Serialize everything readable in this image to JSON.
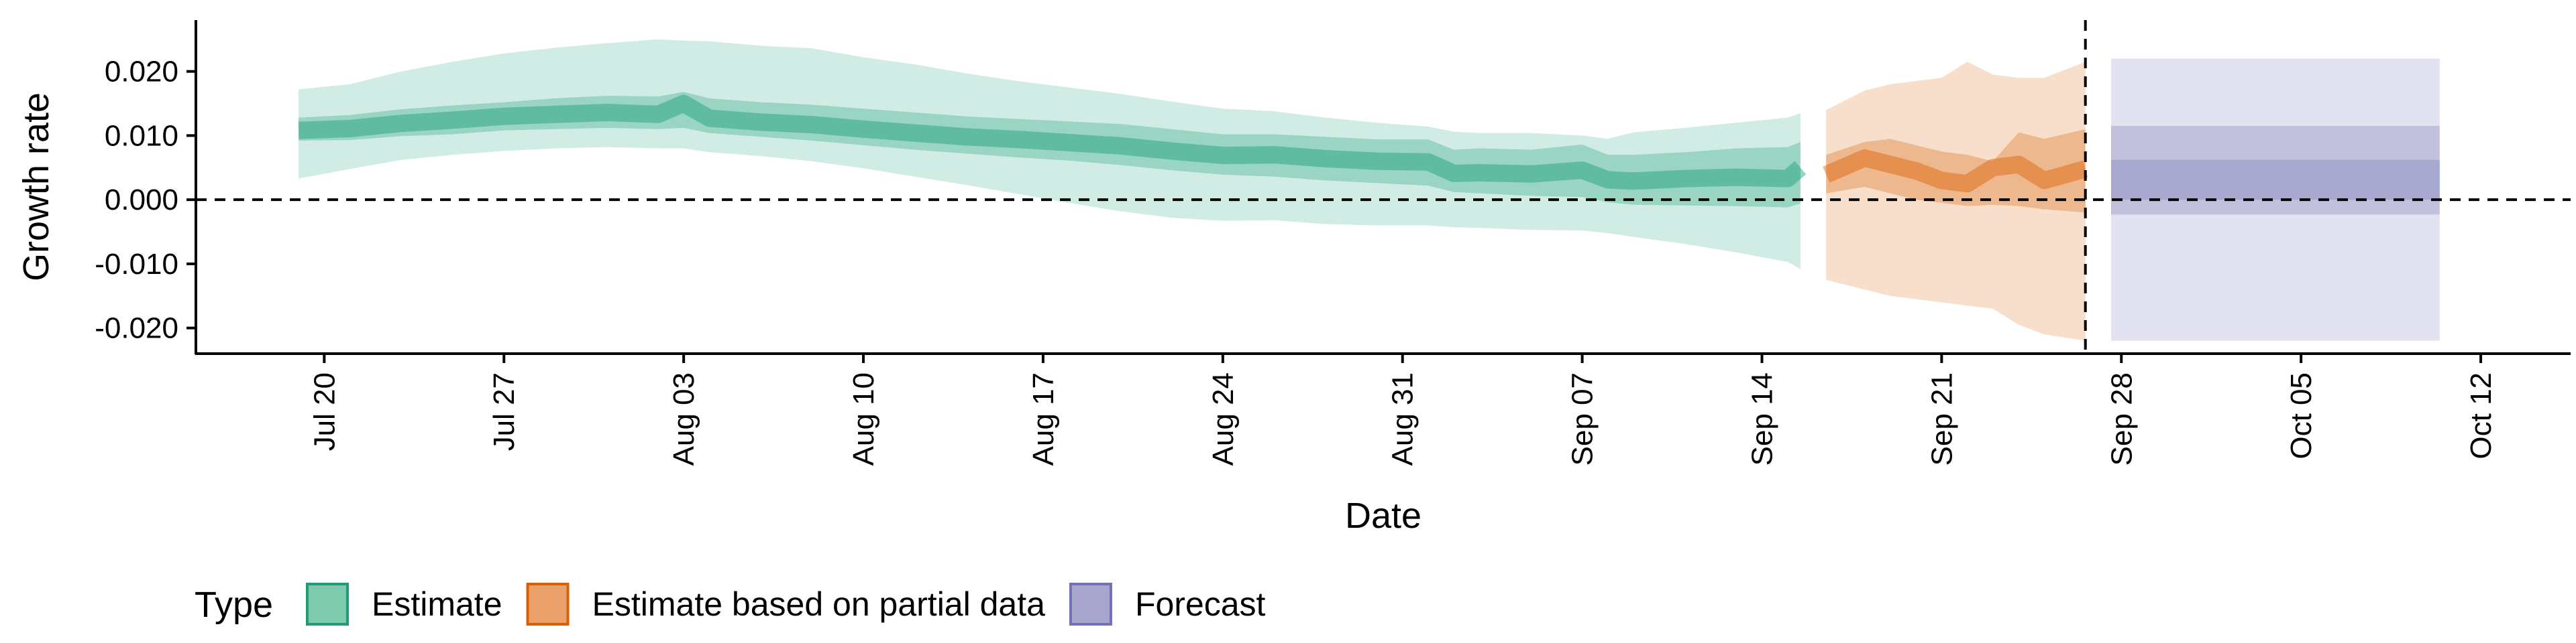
{
  "chart_data": {
    "type": "area",
    "xlabel": "Date",
    "ylabel": "Growth rate",
    "ylim": [
      -0.024,
      0.028
    ],
    "y_ticks": [
      "0.020",
      "0.010",
      "0.000",
      "-0.010",
      "-0.020"
    ],
    "y_tick_values": [
      0.02,
      0.01,
      0.0,
      -0.01,
      -0.02
    ],
    "x_ticks": [
      "Jul 20",
      "Jul 27",
      "Aug 03",
      "Aug 10",
      "Aug 17",
      "Aug 24",
      "Aug 31",
      "Sep 07",
      "Sep 14",
      "Sep 21",
      "Sep 28",
      "Oct 05",
      "Oct 12"
    ],
    "x_tick_days": [
      0,
      7,
      14,
      21,
      28,
      35,
      42,
      49,
      56,
      63,
      70,
      77,
      84
    ],
    "xlim_days": [
      -5,
      87.5
    ],
    "reference_lines": {
      "y_zero": 0.0,
      "vertical_day": 68.6
    },
    "grid": false,
    "legend": {
      "title": "Type",
      "placement": "bottom",
      "entries": [
        {
          "label": "Estimate",
          "fill": "#7fc9ae",
          "stroke": "#1b9e77"
        },
        {
          "label": "Estimate based on partial data",
          "fill": "#e9a06a",
          "stroke": "#d95f02"
        },
        {
          "label": "Forecast",
          "fill": "#aaa7cf",
          "stroke": "#7570b3"
        }
      ]
    },
    "series": [
      {
        "type": "Estimate",
        "color": "#1b9e77",
        "x_days": [
          -1,
          1,
          3,
          5,
          7,
          9,
          11,
          13,
          14,
          15,
          17,
          19,
          21,
          23,
          25,
          27,
          29,
          31,
          33,
          35,
          37,
          39,
          41,
          43,
          44,
          45,
          47,
          49,
          50,
          51,
          53,
          55,
          57,
          57.5
        ],
        "median": [
          0.0108,
          0.0111,
          0.0119,
          0.0124,
          0.013,
          0.0133,
          0.0136,
          0.0133,
          0.015,
          0.0127,
          0.0121,
          0.0117,
          0.011,
          0.0104,
          0.0098,
          0.0094,
          0.0089,
          0.0084,
          0.0076,
          0.0069,
          0.007,
          0.0064,
          0.006,
          0.0059,
          0.0041,
          0.0042,
          0.004,
          0.0046,
          0.0031,
          0.0029,
          0.0033,
          0.0035,
          0.0033,
          0.005
        ],
        "inner_lo": [
          0.0092,
          0.0093,
          0.0099,
          0.0102,
          0.0108,
          0.011,
          0.0112,
          0.011,
          0.0112,
          0.0104,
          0.0098,
          0.0092,
          0.0085,
          0.0078,
          0.0072,
          0.0066,
          0.0061,
          0.0054,
          0.0046,
          0.0039,
          0.0036,
          0.003,
          0.0026,
          0.0022,
          0.0012,
          0.001,
          0.0006,
          0.0004,
          -0.0004,
          -0.0008,
          -0.0009,
          -0.001,
          -0.0012,
          -0.0006
        ],
        "inner_hi": [
          0.0128,
          0.0132,
          0.0141,
          0.0147,
          0.0152,
          0.0158,
          0.0162,
          0.0161,
          0.0168,
          0.0158,
          0.0152,
          0.0148,
          0.0142,
          0.0136,
          0.013,
          0.0126,
          0.0122,
          0.0118,
          0.011,
          0.0102,
          0.0102,
          0.0098,
          0.0094,
          0.0094,
          0.0078,
          0.008,
          0.0078,
          0.0086,
          0.007,
          0.007,
          0.0074,
          0.008,
          0.0082,
          0.009
        ],
        "outer_lo": [
          0.0033,
          0.0048,
          0.0062,
          0.007,
          0.0076,
          0.008,
          0.0082,
          0.008,
          0.008,
          0.0074,
          0.0068,
          0.006,
          0.0049,
          0.0036,
          0.0023,
          0.0009,
          -0.0005,
          -0.0018,
          -0.0028,
          -0.0033,
          -0.0032,
          -0.0038,
          -0.004,
          -0.004,
          -0.0043,
          -0.0044,
          -0.0047,
          -0.0048,
          -0.0052,
          -0.0058,
          -0.0069,
          -0.0082,
          -0.0097,
          -0.0108
        ],
        "outer_hi": [
          0.0172,
          0.018,
          0.02,
          0.0215,
          0.0228,
          0.0237,
          0.0244,
          0.025,
          0.0248,
          0.0247,
          0.024,
          0.0236,
          0.0222,
          0.0211,
          0.0197,
          0.0185,
          0.0175,
          0.0165,
          0.0153,
          0.0142,
          0.0138,
          0.0128,
          0.012,
          0.0114,
          0.0106,
          0.0104,
          0.0104,
          0.01,
          0.0095,
          0.0105,
          0.0112,
          0.012,
          0.0128,
          0.0135
        ]
      },
      {
        "type": "Estimate based on partial data",
        "color": "#d95f02",
        "x_days": [
          58.5,
          60,
          61,
          62,
          63,
          64,
          65,
          66,
          67,
          68.6
        ],
        "median": [
          0.0039,
          0.0065,
          0.0055,
          0.0045,
          0.003,
          0.0025,
          0.005,
          0.0055,
          0.003,
          0.0048
        ],
        "inner_lo": [
          0.001,
          0.002,
          0.001,
          0.0,
          -0.0005,
          -0.001,
          -0.0008,
          -0.001,
          -0.0015,
          -0.002
        ],
        "inner_hi": [
          0.007,
          0.009,
          0.0095,
          0.0085,
          0.0075,
          0.007,
          0.006,
          0.0105,
          0.0095,
          0.011
        ],
        "outer_lo": [
          -0.0125,
          -0.014,
          -0.015,
          -0.0155,
          -0.016,
          -0.0165,
          -0.017,
          -0.0195,
          -0.021,
          -0.022
        ],
        "outer_hi": [
          0.014,
          0.017,
          0.018,
          0.0185,
          0.019,
          0.0215,
          0.0195,
          0.019,
          0.019,
          0.0215
        ]
      },
      {
        "type": "Forecast",
        "color": "#7570b3",
        "x_days": [
          69.6,
          82.4
        ],
        "median": [
          0.003,
          0.003
        ],
        "inner_lo": [
          -0.0023,
          -0.0023
        ],
        "inner_hi": [
          0.0115,
          0.0115
        ],
        "median_band_lo": [
          0.0,
          0.0
        ],
        "median_band_hi": [
          0.0062,
          0.0062
        ],
        "outer_lo": [
          -0.022,
          -0.022
        ],
        "outer_hi": [
          0.022,
          0.022
        ]
      }
    ]
  }
}
